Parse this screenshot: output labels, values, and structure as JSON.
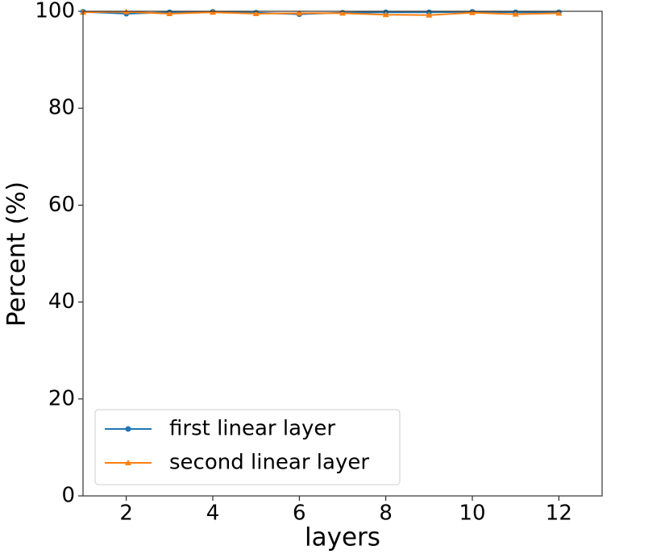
{
  "chart_data": {
    "type": "line",
    "xlabel": "layers",
    "ylabel": "Percent (%)",
    "x": [
      1,
      2,
      3,
      4,
      5,
      6,
      7,
      8,
      9,
      10,
      11,
      12
    ],
    "series": [
      {
        "name": "first linear layer",
        "color": "#1f77b4",
        "marker": "circle",
        "values": [
          99.9,
          99.5,
          99.8,
          99.9,
          99.7,
          99.4,
          99.7,
          99.8,
          99.8,
          99.9,
          99.8,
          99.8
        ]
      },
      {
        "name": "second linear layer",
        "color": "#ff7f0e",
        "marker": "triangle",
        "values": [
          99.8,
          99.9,
          99.5,
          99.8,
          99.5,
          99.6,
          99.6,
          99.3,
          99.2,
          99.7,
          99.4,
          99.6
        ]
      }
    ],
    "xlim": [
      1,
      13
    ],
    "xticks": [
      2,
      4,
      6,
      8,
      10,
      12
    ],
    "ylim": [
      0,
      100
    ],
    "yticks": [
      0,
      20,
      40,
      60,
      80,
      100
    ],
    "legend": "lower left"
  }
}
